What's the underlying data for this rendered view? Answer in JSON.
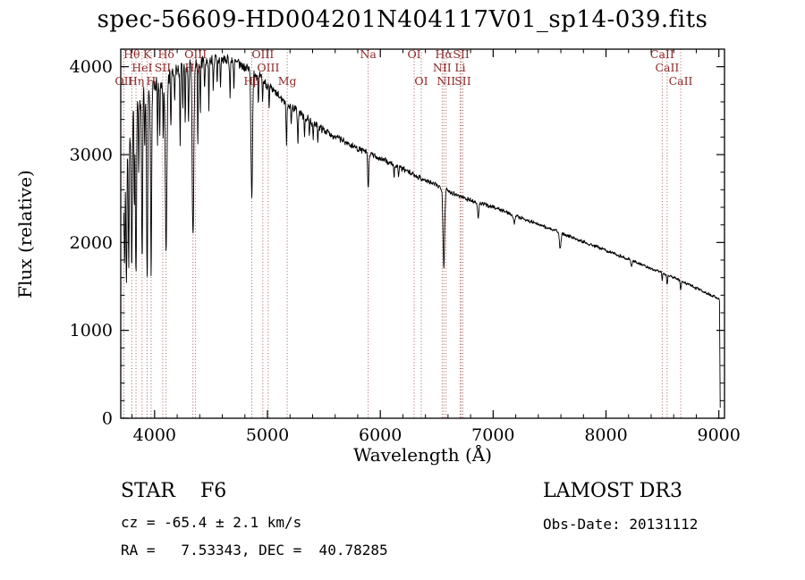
{
  "title": "spec-56609-HD004201N404117V01_sp14-039.fits",
  "chart_data": {
    "type": "line",
    "title": "spec-56609-HD004201N404117V01_sp14-039.fits",
    "xlabel": "Wavelength (Å)",
    "ylabel": "Flux (relative)",
    "xlim": [
      3700,
      9050
    ],
    "ylim": [
      0,
      4200
    ],
    "xticks": [
      4000,
      5000,
      6000,
      7000,
      8000,
      9000
    ],
    "yticks": [
      0,
      1000,
      2000,
      3000,
      4000
    ],
    "x_minor_step": 200,
    "y_minor_step": 200,
    "grid": false,
    "line_color": "#000000",
    "marker_color": "#8b2828",
    "markers": [
      {
        "label": "OII",
        "wavelength": 3727,
        "row": 3
      },
      {
        "label": "Hθ",
        "wavelength": 3798,
        "row": 1
      },
      {
        "label": "Hη",
        "wavelength": 3835,
        "row": 3
      },
      {
        "label": "HeI",
        "wavelength": 3889,
        "row": 2
      },
      {
        "label": "K",
        "wavelength": 3934,
        "row": 1
      },
      {
        "label": "H",
        "wavelength": 3969,
        "row": 3
      },
      {
        "label": "SII",
        "wavelength": 4072,
        "row": 2
      },
      {
        "label": "Hδ",
        "wavelength": 4102,
        "row": 1
      },
      {
        "label": "Hγ",
        "wavelength": 4340,
        "row": 2
      },
      {
        "label": "OIII",
        "wavelength": 4363,
        "row": 1
      },
      {
        "label": "Hβ",
        "wavelength": 4861,
        "row": 3
      },
      {
        "label": "OIII",
        "wavelength": 4959,
        "row": 1
      },
      {
        "label": "OIII",
        "wavelength": 5007,
        "row": 2
      },
      {
        "label": "Mg",
        "wavelength": 5175,
        "row": 3
      },
      {
        "label": "Na",
        "wavelength": 5893,
        "row": 1
      },
      {
        "label": "OI",
        "wavelength": 6300,
        "row": 1
      },
      {
        "label": "OI",
        "wavelength": 6363,
        "row": 3
      },
      {
        "label": "NII",
        "wavelength": 6548,
        "row": 2
      },
      {
        "label": "Hα",
        "wavelength": 6563,
        "row": 1
      },
      {
        "label": "NII",
        "wavelength": 6583,
        "row": 3
      },
      {
        "label": "Li",
        "wavelength": 6708,
        "row": 2
      },
      {
        "label": "SII",
        "wavelength": 6717,
        "row": 1
      },
      {
        "label": "SII",
        "wavelength": 6731,
        "row": 3
      },
      {
        "label": "CaII",
        "wavelength": 8498,
        "row": 1
      },
      {
        "label": "CaII",
        "wavelength": 8542,
        "row": 2
      },
      {
        "label": "CaII",
        "wavelength": 8662,
        "row": 3
      }
    ],
    "spectrum": {
      "start": 3726,
      "end": 9008,
      "step": 2.5,
      "seed": 7,
      "continuum": [
        [
          3726,
          2500
        ],
        [
          3760,
          3100
        ],
        [
          3800,
          3450
        ],
        [
          3850,
          3600
        ],
        [
          3900,
          3690
        ],
        [
          3950,
          3730
        ],
        [
          4000,
          3780
        ],
        [
          4100,
          3860
        ],
        [
          4200,
          3950
        ],
        [
          4300,
          4000
        ],
        [
          4400,
          4050
        ],
        [
          4500,
          4075
        ],
        [
          4600,
          4080
        ],
        [
          4700,
          4050
        ],
        [
          4800,
          4000
        ],
        [
          4900,
          3920
        ],
        [
          5000,
          3790
        ],
        [
          5100,
          3660
        ],
        [
          5200,
          3560
        ],
        [
          5300,
          3460
        ],
        [
          5400,
          3360
        ],
        [
          5500,
          3280
        ],
        [
          5600,
          3205
        ],
        [
          5700,
          3135
        ],
        [
          5800,
          3070
        ],
        [
          5900,
          3010
        ],
        [
          6000,
          2955
        ],
        [
          6100,
          2895
        ],
        [
          6200,
          2835
        ],
        [
          6300,
          2770
        ],
        [
          6400,
          2705
        ],
        [
          6500,
          2650
        ],
        [
          6600,
          2590
        ],
        [
          6700,
          2530
        ],
        [
          6800,
          2480
        ],
        [
          6900,
          2440
        ],
        [
          7000,
          2405
        ],
        [
          7100,
          2355
        ],
        [
          7200,
          2305
        ],
        [
          7300,
          2255
        ],
        [
          7400,
          2205
        ],
        [
          7500,
          2160
        ],
        [
          7600,
          2110
        ],
        [
          7700,
          2060
        ],
        [
          7800,
          2010
        ],
        [
          7900,
          1960
        ],
        [
          8000,
          1910
        ],
        [
          8100,
          1860
        ],
        [
          8200,
          1810
        ],
        [
          8300,
          1760
        ],
        [
          8400,
          1705
        ],
        [
          8500,
          1655
        ],
        [
          8600,
          1600
        ],
        [
          8700,
          1540
        ],
        [
          8800,
          1480
        ],
        [
          8900,
          1420
        ],
        [
          9000,
          1355
        ],
        [
          9010,
          1330
        ]
      ],
      "absorption_lines": [
        [
          3734,
          0.38,
          3
        ],
        [
          3750,
          0.48,
          4
        ],
        [
          3771,
          0.45,
          4
        ],
        [
          3798,
          0.5,
          5
        ],
        [
          3820,
          0.28,
          3
        ],
        [
          3835,
          0.54,
          5
        ],
        [
          3860,
          0.22,
          3
        ],
        [
          3889,
          0.52,
          5
        ],
        [
          3912,
          0.2,
          3
        ],
        [
          3934,
          0.6,
          5
        ],
        [
          3969,
          0.55,
          5
        ],
        [
          4026,
          0.2,
          3
        ],
        [
          4045,
          0.16,
          3
        ],
        [
          4077,
          0.15,
          3
        ],
        [
          4102,
          0.52,
          7
        ],
        [
          4144,
          0.16,
          3
        ],
        [
          4178,
          0.1,
          3
        ],
        [
          4226,
          0.22,
          3
        ],
        [
          4250,
          0.12,
          3
        ],
        [
          4271,
          0.16,
          3
        ],
        [
          4300,
          0.14,
          4
        ],
        [
          4340,
          0.5,
          7
        ],
        [
          4383,
          0.22,
          3
        ],
        [
          4405,
          0.14,
          3
        ],
        [
          4444,
          0.08,
          3
        ],
        [
          4481,
          0.12,
          3
        ],
        [
          4520,
          0.08,
          3
        ],
        [
          4554,
          0.07,
          3
        ],
        [
          4584,
          0.08,
          3
        ],
        [
          4668,
          0.1,
          3
        ],
        [
          4703,
          0.07,
          3
        ],
        [
          4861,
          0.36,
          7
        ],
        [
          4920,
          0.08,
          3
        ],
        [
          4957,
          0.06,
          3
        ],
        [
          5015,
          0.07,
          3
        ],
        [
          5169,
          0.13,
          4
        ],
        [
          5210,
          0.06,
          3
        ],
        [
          5270,
          0.1,
          4
        ],
        [
          5328,
          0.07,
          3
        ],
        [
          5371,
          0.06,
          3
        ],
        [
          5406,
          0.05,
          3
        ],
        [
          5446,
          0.05,
          3
        ],
        [
          5893,
          0.13,
          5
        ],
        [
          6122,
          0.05,
          3
        ],
        [
          6162,
          0.04,
          3
        ],
        [
          6563,
          0.34,
          7
        ],
        [
          6867,
          0.07,
          6
        ],
        [
          7186,
          0.04,
          6
        ],
        [
          7594,
          0.09,
          7
        ],
        [
          8226,
          0.04,
          5
        ],
        [
          8498,
          0.05,
          4
        ],
        [
          8542,
          0.07,
          4
        ],
        [
          8662,
          0.06,
          4
        ]
      ],
      "noise": [
        [
          3726,
          210
        ],
        [
          3800,
          170
        ],
        [
          3900,
          150
        ],
        [
          4000,
          135
        ],
        [
          4200,
          110
        ],
        [
          4400,
          95
        ],
        [
          4600,
          85
        ],
        [
          4800,
          75
        ],
        [
          5000,
          62
        ],
        [
          5200,
          55
        ],
        [
          5500,
          48
        ],
        [
          6000,
          40
        ],
        [
          6500,
          34
        ],
        [
          7000,
          28
        ],
        [
          7500,
          24
        ],
        [
          8000,
          22
        ],
        [
          8500,
          20
        ],
        [
          9000,
          22
        ]
      ],
      "edge_drop": {
        "wavelength": 9012,
        "flux": 120
      }
    }
  },
  "annotations": {
    "class_label": "STAR    F6",
    "cz": "cz = -65.4 ± 2.1 km/s",
    "radec": "RA =   7.53343, DEC =  40.78285",
    "survey": "LAMOST DR3",
    "obs_date": "Obs-Date: 20131112"
  }
}
